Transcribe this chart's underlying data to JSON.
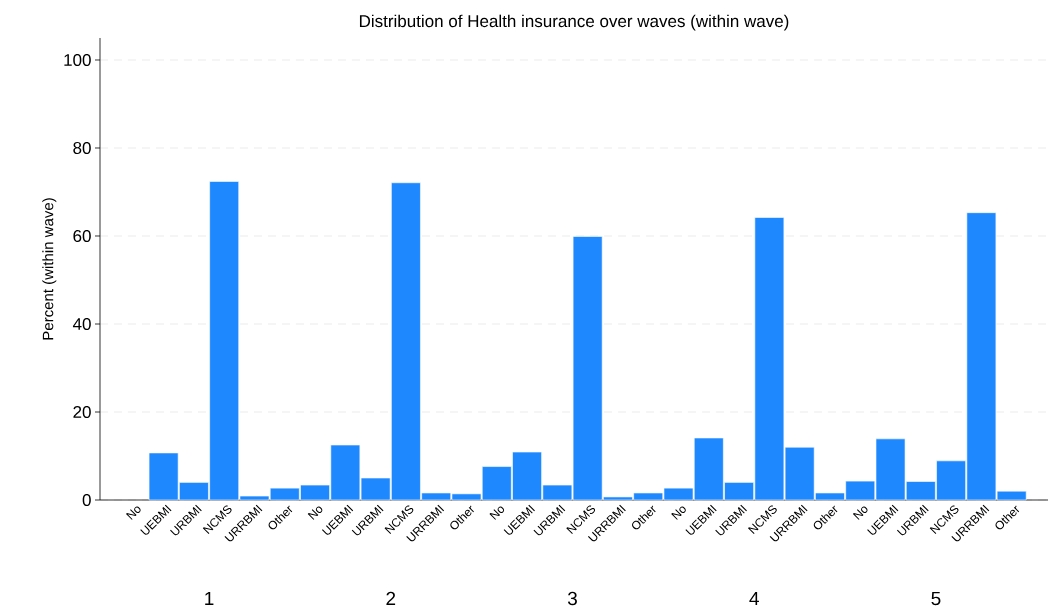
{
  "chart_data": {
    "type": "bar",
    "title": "Distribution of Health insurance over waves (within wave)",
    "ylabel": "Percent (within wave)",
    "categories": [
      "No",
      "UEBMI",
      "URBMI",
      "NCMS",
      "URRBMI",
      "Other",
      "No",
      "UEBMI",
      "URBMI",
      "NCMS",
      "URRBMI",
      "Other",
      "No",
      "UEBMI",
      "URBMI",
      "NCMS",
      "URRBMI",
      "Other",
      "No",
      "UEBMI",
      "URBMI",
      "NCMS",
      "URRBMI",
      "Other",
      "No",
      "UEBMI",
      "URBMI",
      "NCMS",
      "URRBMI",
      "Other"
    ],
    "values": [
      null,
      10.7,
      4.0,
      72.4,
      0.9,
      2.7,
      3.4,
      12.5,
      5.0,
      72.1,
      1.6,
      1.4,
      7.6,
      10.9,
      3.4,
      59.9,
      0.7,
      1.6,
      2.7,
      14.1,
      4.0,
      64.2,
      12.0,
      1.6,
      4.3,
      13.9,
      4.2,
      8.9,
      65.3,
      2.0
    ],
    "color": "#1e88ff",
    "ylim": [
      0,
      105
    ],
    "yticks": [
      0,
      20,
      40,
      60,
      80,
      100
    ],
    "grid": "y",
    "annotations": [
      "1",
      "2",
      "3",
      "4",
      "5"
    ]
  }
}
